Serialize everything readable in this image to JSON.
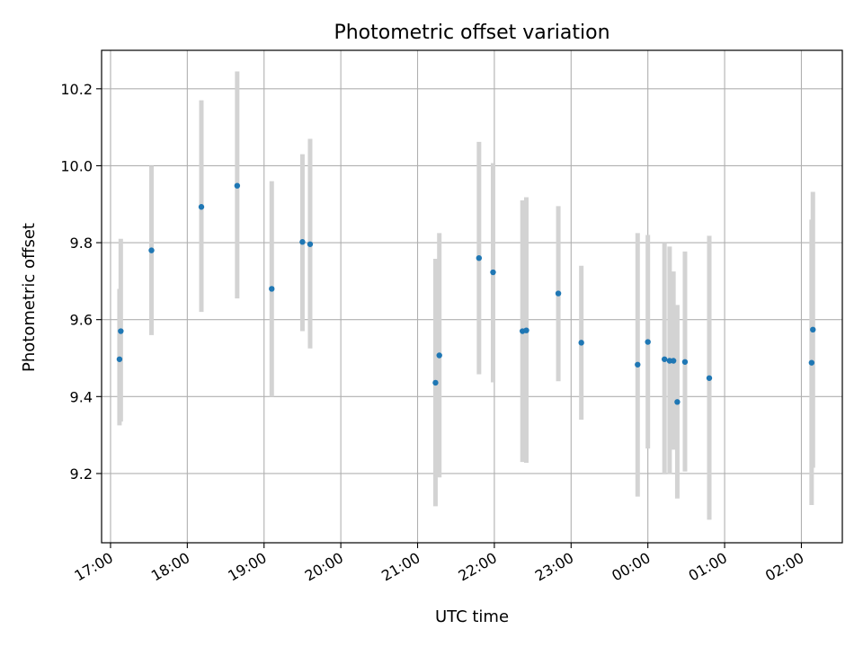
{
  "chart_data": {
    "type": "scatter",
    "title": "Photometric offset variation",
    "xlabel": "UTC time",
    "ylabel": "Photometric offset",
    "grid": true,
    "x_axis_kind": "time",
    "xlim": [
      "16:53",
      "02:32"
    ],
    "ylim": [
      9.02,
      10.3
    ],
    "x_ticks": [
      {
        "t": "17:00",
        "label": "17:00"
      },
      {
        "t": "18:00",
        "label": "18:00"
      },
      {
        "t": "19:00",
        "label": "19:00"
      },
      {
        "t": "20:00",
        "label": "20:00"
      },
      {
        "t": "21:00",
        "label": "21:00"
      },
      {
        "t": "22:00",
        "label": "22:00"
      },
      {
        "t": "23:00",
        "label": "23:00"
      },
      {
        "t": "00:00",
        "label": "00:00"
      },
      {
        "t": "01:00",
        "label": "01:00"
      },
      {
        "t": "02:00",
        "label": "02:00"
      }
    ],
    "y_ticks": [
      {
        "v": 9.2,
        "label": "9.2"
      },
      {
        "v": 9.4,
        "label": "9.4"
      },
      {
        "v": 9.6,
        "label": "9.6"
      },
      {
        "v": 9.8,
        "label": "9.8"
      },
      {
        "v": 10.0,
        "label": "10.0"
      },
      {
        "v": 10.2,
        "label": "10.2"
      }
    ],
    "colors": {
      "point": "#1f77b4",
      "errorbar": "#d3d3d3",
      "grid": "#b0b0b0",
      "axes": "#000000"
    },
    "points": [
      {
        "t": "17:07",
        "y": 9.497,
        "lo": 9.325,
        "hi": 9.68
      },
      {
        "t": "17:08",
        "y": 9.57,
        "lo": 9.335,
        "hi": 9.81
      },
      {
        "t": "17:32",
        "y": 9.78,
        "lo": 9.56,
        "hi": 10.0
      },
      {
        "t": "18:11",
        "y": 9.893,
        "lo": 9.62,
        "hi": 10.17
      },
      {
        "t": "18:39",
        "y": 9.948,
        "lo": 9.655,
        "hi": 10.245
      },
      {
        "t": "19:06",
        "y": 9.68,
        "lo": 9.4,
        "hi": 9.96
      },
      {
        "t": "19:30",
        "y": 9.802,
        "lo": 9.57,
        "hi": 10.03
      },
      {
        "t": "19:36",
        "y": 9.796,
        "lo": 9.525,
        "hi": 10.07
      },
      {
        "t": "21:14",
        "y": 9.436,
        "lo": 9.115,
        "hi": 9.758
      },
      {
        "t": "21:17",
        "y": 9.507,
        "lo": 9.19,
        "hi": 9.825
      },
      {
        "t": "21:48",
        "y": 9.76,
        "lo": 9.458,
        "hi": 10.062
      },
      {
        "t": "21:59",
        "y": 9.723,
        "lo": 9.437,
        "hi": 10.007
      },
      {
        "t": "22:22",
        "y": 9.57,
        "lo": 9.23,
        "hi": 9.91
      },
      {
        "t": "22:25",
        "y": 9.572,
        "lo": 9.228,
        "hi": 9.918
      },
      {
        "t": "22:50",
        "y": 9.668,
        "lo": 9.44,
        "hi": 9.895
      },
      {
        "t": "23:08",
        "y": 9.54,
        "lo": 9.34,
        "hi": 9.74
      },
      {
        "t": "23:52",
        "y": 9.483,
        "lo": 9.14,
        "hi": 9.825
      },
      {
        "t": "24:00",
        "y": 9.542,
        "lo": 9.265,
        "hi": 9.82
      },
      {
        "t": "24:13",
        "y": 9.497,
        "lo": 9.2,
        "hi": 9.8
      },
      {
        "t": "24:17",
        "y": 9.493,
        "lo": 9.198,
        "hi": 9.79
      },
      {
        "t": "24:20",
        "y": 9.493,
        "lo": 9.262,
        "hi": 9.725
      },
      {
        "t": "24:23",
        "y": 9.386,
        "lo": 9.135,
        "hi": 9.638
      },
      {
        "t": "24:29",
        "y": 9.49,
        "lo": 9.205,
        "hi": 9.777
      },
      {
        "t": "24:48",
        "y": 9.448,
        "lo": 9.08,
        "hi": 9.818
      },
      {
        "t": "26:08",
        "y": 9.488,
        "lo": 9.118,
        "hi": 9.86
      },
      {
        "t": "26:09",
        "y": 9.574,
        "lo": 9.215,
        "hi": 9.932
      }
    ]
  }
}
